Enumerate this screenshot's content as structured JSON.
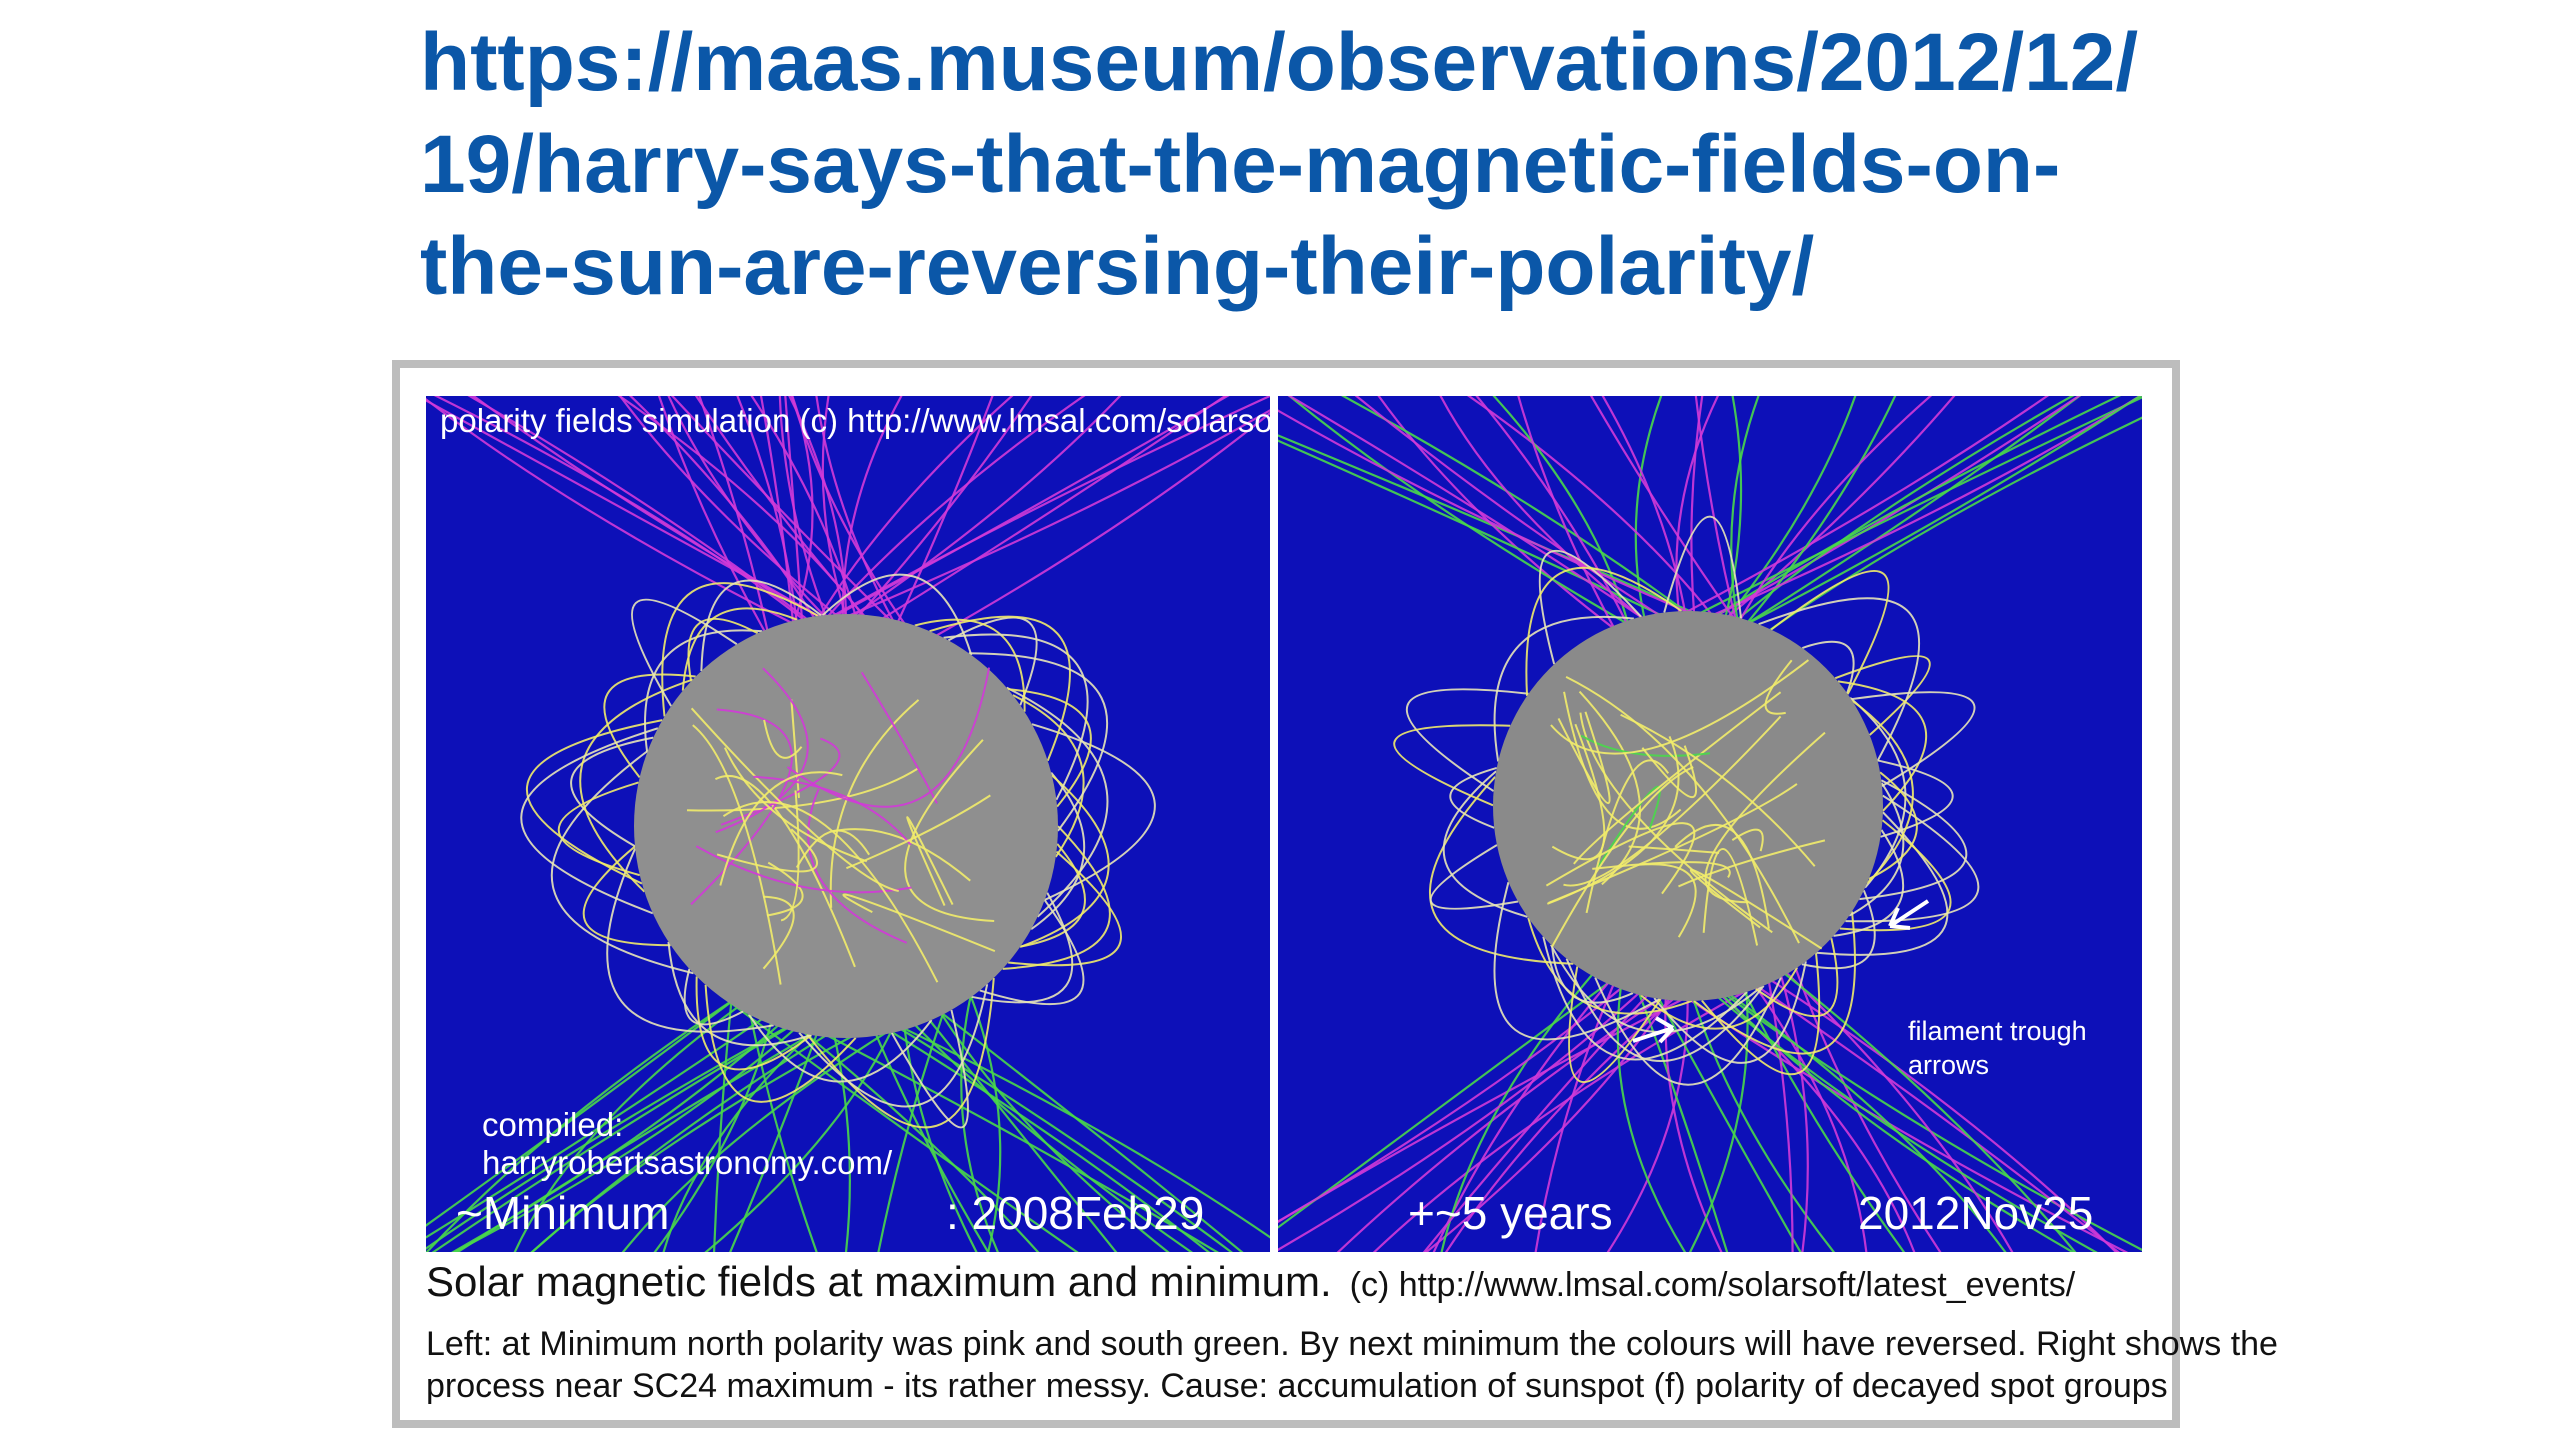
{
  "url": {
    "lines": [
      "https://maas.museum/observations/2012/12/",
      "19/harry-says-that-the-magnetic-fields-on-",
      "the-sun-are-reversing-their-polarity/"
    ],
    "color": "#0b57a8"
  },
  "figure": {
    "credit_top": "polarity fields simulation (c) http://www.lmsal.com/solarsoft/latest_events/",
    "left_panel": {
      "compiled_label": "compiled:",
      "compiled_site": "harryrobertsastronomy.com/",
      "phase_label": "~Minimum",
      "date_label": ": 2008Feb29"
    },
    "right_panel": {
      "offset_label": "+~5 years",
      "date_label": "2012Nov25",
      "filament_label": "filament trough arrows"
    },
    "caption_main": "Solar magnetic fields at maximum and minimum.",
    "caption_credit": "(c) http://www.lmsal.com/solarsoft/latest_events/",
    "explanation_line1": "Left: at Minimum north polarity was pink and south green. By next minimum the colours will have reversed. Right shows the",
    "explanation_line2": "process near SC24 maximum - its rather messy.    Cause: accumulation of sunspot (f) polarity of decayed spot groups",
    "colors": {
      "background": "#0d10b8",
      "sun_disk": "#8f8f8f",
      "field_pink": "#d23ad8",
      "field_green": "#49d84a",
      "field_yellow": "#f2ec6a"
    }
  }
}
